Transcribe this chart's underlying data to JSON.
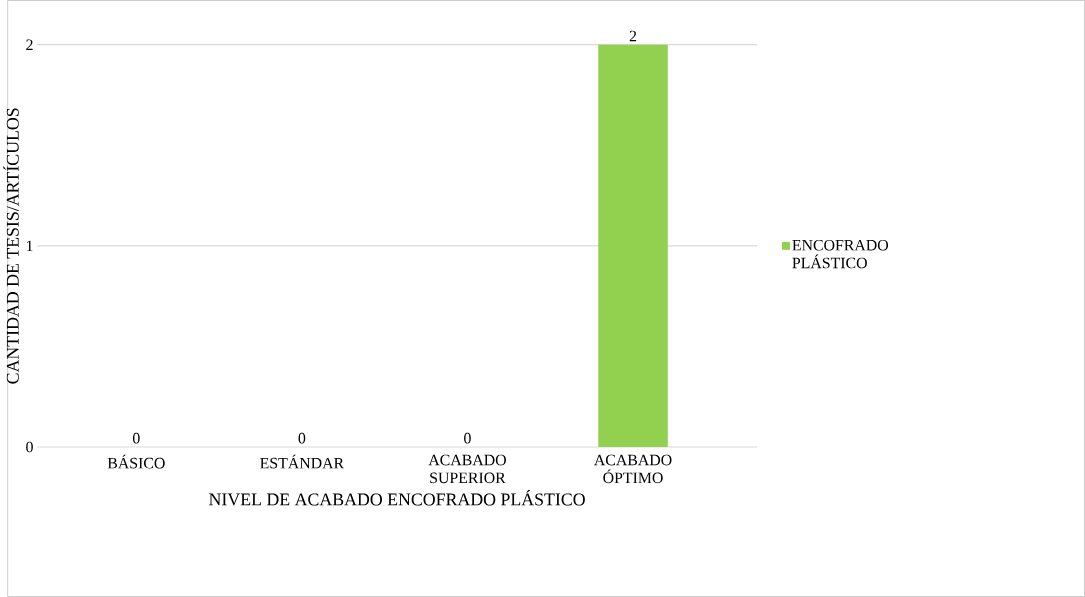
{
  "chart_data": {
    "type": "bar",
    "xlabel": "NIVEL DE ACABADO ENCOFRADO PLÁSTICO",
    "ylabel": "CANTIDAD DE TESIS/ARTÍCULOS",
    "categories": [
      "BÁSICO",
      "ESTÁNDAR",
      "ACABADO SUPERIOR",
      "ACABADO ÓPTIMO"
    ],
    "series": [
      {
        "name": "ENCOFRADO PLÁSTICO",
        "color": "#92d050",
        "values": [
          0,
          0,
          0,
          2
        ]
      }
    ],
    "ylim": [
      0,
      2
    ],
    "yticks": [
      0,
      1,
      2
    ],
    "grid": "y",
    "legend": "right",
    "data_labels": true
  }
}
